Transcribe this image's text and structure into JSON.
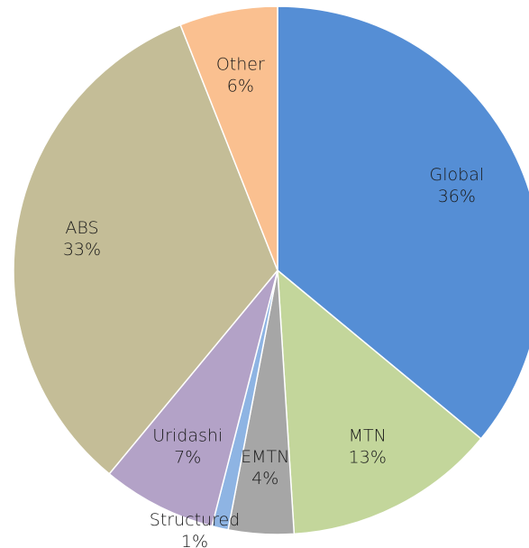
{
  "chart_data": {
    "type": "pie",
    "categories": [
      "Global",
      "MTN",
      "EMTN",
      "Structured",
      "Uridashi",
      "ABS",
      "Other"
    ],
    "values": [
      36,
      13,
      4,
      1,
      7,
      33,
      6
    ],
    "value_labels": [
      "36%",
      "13%",
      "4%",
      "1%",
      "7%",
      "33%",
      "6%"
    ],
    "colors": [
      "#558ed5",
      "#c3d69b",
      "#a6a6a6",
      "#8eb4e3",
      "#b3a2c7",
      "#c4bd97",
      "#fac090"
    ]
  }
}
